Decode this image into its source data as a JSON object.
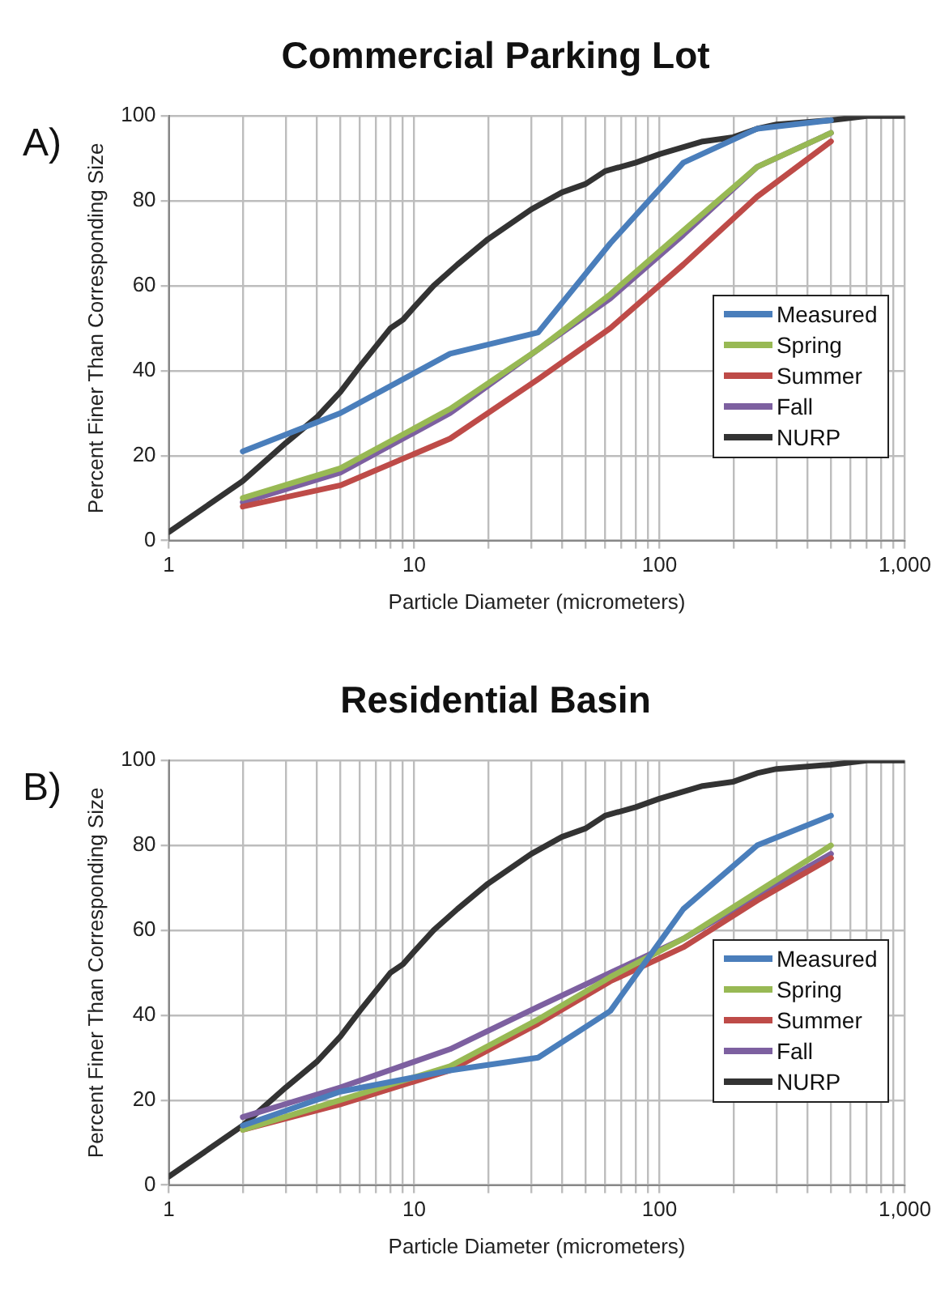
{
  "chart_data": [
    {
      "type": "line",
      "title": "Commercial Parking Lot",
      "xlabel": "Particle Diameter (micrometers)",
      "ylabel": "Percent Finer Than Corresponding Size",
      "annotations": [
        "A)"
      ],
      "log": "x",
      "grid": true,
      "legend": "right",
      "marker": "none",
      "line_style": "solid",
      "xlim": [
        1,
        1000
      ],
      "ylim": [
        0,
        100
      ],
      "xticks": [
        1,
        {
          "value": 2,
          "label": null
        },
        {
          "value": 3,
          "label": null
        },
        {
          "value": 4,
          "label": null
        },
        {
          "value": 5,
          "label": null
        },
        {
          "value": 6,
          "label": null
        },
        {
          "value": 7,
          "label": null
        },
        {
          "value": 8,
          "label": null
        },
        {
          "value": 9,
          "label": null
        },
        10,
        {
          "value": 20,
          "label": null
        },
        {
          "value": 30,
          "label": null
        },
        {
          "value": 40,
          "label": null
        },
        {
          "value": 50,
          "label": null
        },
        {
          "value": 60,
          "label": null
        },
        {
          "value": 70,
          "label": null
        },
        {
          "value": 80,
          "label": null
        },
        {
          "value": 90,
          "label": null
        },
        100,
        {
          "value": 200,
          "label": null
        },
        {
          "value": 300,
          "label": null
        },
        {
          "value": 400,
          "label": null
        },
        {
          "value": 500,
          "label": null
        },
        {
          "value": 600,
          "label": null
        },
        {
          "value": 700,
          "label": null
        },
        {
          "value": 800,
          "label": null
        },
        {
          "value": 900,
          "label": null
        },
        {
          "value": 1000,
          "label": "1,000"
        }
      ],
      "yticks": [
        0,
        20,
        40,
        60,
        80,
        100
      ],
      "series": [
        {
          "name": "Measured",
          "color": "#4a7ebb",
          "x": [
            2,
            5,
            14,
            32,
            63,
            125,
            250,
            500
          ],
          "values": [
            21,
            30,
            44,
            49,
            70,
            89,
            97,
            99
          ]
        },
        {
          "name": "Spring",
          "color": "#98b954",
          "x": [
            2,
            5,
            14,
            32,
            63,
            125,
            250,
            500
          ],
          "values": [
            10,
            17,
            31,
            45,
            58,
            73,
            88,
            96
          ]
        },
        {
          "name": "Summer",
          "color": "#be4b48",
          "x": [
            2,
            5,
            14,
            32,
            63,
            125,
            250,
            500
          ],
          "values": [
            8,
            13,
            24,
            38,
            50,
            65,
            81,
            94
          ]
        },
        {
          "name": "Fall",
          "color": "#7d60a0",
          "x": [
            2,
            5,
            14,
            32,
            63,
            125,
            250,
            500
          ],
          "values": [
            9,
            16,
            30,
            45,
            57,
            72,
            88,
            96
          ]
        },
        {
          "name": "NURP",
          "color": "#333333",
          "x": [
            1,
            2,
            3,
            4,
            5,
            6,
            8,
            9,
            10,
            12,
            15,
            20,
            30,
            40,
            50,
            60,
            80,
            100,
            150,
            200,
            250,
            300,
            500,
            700,
            1000
          ],
          "values": [
            2,
            14,
            23,
            29,
            35,
            41,
            50,
            52,
            55,
            60,
            65,
            71,
            78,
            82,
            84,
            87,
            89,
            91,
            94,
            95,
            97,
            98,
            99,
            100,
            100
          ]
        }
      ]
    },
    {
      "type": "line",
      "title": "Residential Basin",
      "xlabel": "Particle Diameter (micrometers)",
      "ylabel": "Percent Finer Than Corresponding Size",
      "annotations": [
        "B)"
      ],
      "log": "x",
      "grid": true,
      "legend": "right",
      "marker": "none",
      "line_style": "solid",
      "xlim": [
        1,
        1000
      ],
      "ylim": [
        0,
        100
      ],
      "xticks": [
        1,
        {
          "value": 2,
          "label": null
        },
        {
          "value": 3,
          "label": null
        },
        {
          "value": 4,
          "label": null
        },
        {
          "value": 5,
          "label": null
        },
        {
          "value": 6,
          "label": null
        },
        {
          "value": 7,
          "label": null
        },
        {
          "value": 8,
          "label": null
        },
        {
          "value": 9,
          "label": null
        },
        10,
        {
          "value": 20,
          "label": null
        },
        {
          "value": 30,
          "label": null
        },
        {
          "value": 40,
          "label": null
        },
        {
          "value": 50,
          "label": null
        },
        {
          "value": 60,
          "label": null
        },
        {
          "value": 70,
          "label": null
        },
        {
          "value": 80,
          "label": null
        },
        {
          "value": 90,
          "label": null
        },
        100,
        {
          "value": 200,
          "label": null
        },
        {
          "value": 300,
          "label": null
        },
        {
          "value": 400,
          "label": null
        },
        {
          "value": 500,
          "label": null
        },
        {
          "value": 600,
          "label": null
        },
        {
          "value": 700,
          "label": null
        },
        {
          "value": 800,
          "label": null
        },
        {
          "value": 900,
          "label": null
        },
        {
          "value": 1000,
          "label": "1,000"
        }
      ],
      "yticks": [
        0,
        20,
        40,
        60,
        80,
        100
      ],
      "series": [
        {
          "name": "Measured",
          "color": "#4a7ebb",
          "x": [
            2,
            5,
            14,
            32,
            63,
            125,
            250,
            500
          ],
          "values": [
            14,
            22,
            27,
            30,
            41,
            65,
            80,
            87
          ]
        },
        {
          "name": "Spring",
          "color": "#98b954",
          "x": [
            2,
            5,
            14,
            32,
            63,
            125,
            250,
            500
          ],
          "values": [
            13,
            20,
            28,
            39,
            49,
            58,
            69,
            80
          ]
        },
        {
          "name": "Summer",
          "color": "#be4b48",
          "x": [
            2,
            5,
            14,
            32,
            63,
            125,
            250,
            500
          ],
          "values": [
            13,
            19,
            27,
            38,
            48,
            56,
            67,
            77
          ]
        },
        {
          "name": "Fall",
          "color": "#7d60a0",
          "x": [
            2,
            5,
            14,
            32,
            63,
            125,
            250,
            500
          ],
          "values": [
            16,
            23,
            32,
            42,
            50,
            58,
            68,
            78
          ]
        },
        {
          "name": "NURP",
          "color": "#333333",
          "x": [
            1,
            2,
            3,
            4,
            5,
            6,
            8,
            9,
            10,
            12,
            15,
            20,
            30,
            40,
            50,
            60,
            80,
            100,
            150,
            200,
            250,
            300,
            500,
            700,
            1000
          ],
          "values": [
            2,
            14,
            23,
            29,
            35,
            41,
            50,
            52,
            55,
            60,
            65,
            71,
            78,
            82,
            84,
            87,
            89,
            91,
            94,
            95,
            97,
            98,
            99,
            100,
            100
          ]
        }
      ]
    }
  ]
}
